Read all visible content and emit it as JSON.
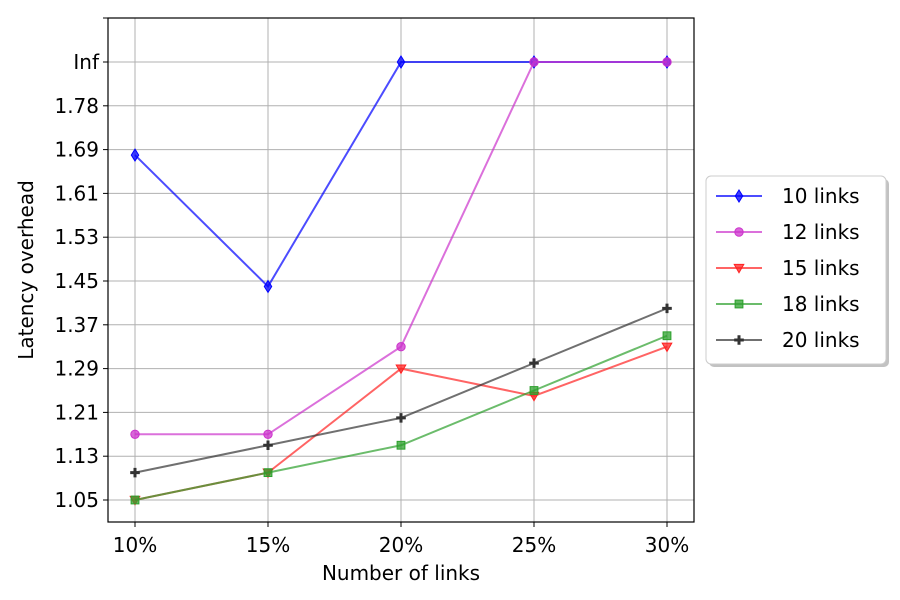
{
  "chart_data": {
    "type": "line",
    "xlabel": "Number of links",
    "ylabel": "Latency overhead",
    "categories": [
      "10%",
      "15%",
      "20%",
      "25%",
      "30%"
    ],
    "yticks": [
      "1.05",
      "1.13",
      "1.21",
      "1.29",
      "1.37",
      "1.45",
      "1.53",
      "1.61",
      "1.69",
      "1.78",
      "Inf"
    ],
    "ylim": [
      1.0,
      1.94
    ],
    "grid": true,
    "legend_position": "right, outside plot",
    "series": [
      {
        "name": "10 links",
        "color": "#0000ff",
        "marker": "diamond",
        "values": [
          1.68,
          1.44,
          "Inf",
          "Inf",
          "Inf"
        ]
      },
      {
        "name": "12 links",
        "color": "#cc33cc",
        "marker": "circle",
        "values": [
          1.17,
          1.17,
          1.33,
          "Inf",
          "Inf"
        ]
      },
      {
        "name": "15 links",
        "color": "#ff2222",
        "marker": "triangle-down",
        "values": [
          1.05,
          1.1,
          1.29,
          1.24,
          1.33
        ]
      },
      {
        "name": "18 links",
        "color": "#2ca02c",
        "marker": "square",
        "values": [
          1.05,
          1.1,
          1.15,
          1.25,
          1.35
        ]
      },
      {
        "name": "20 links",
        "color": "#333333",
        "marker": "plus",
        "values": [
          1.1,
          1.15,
          1.2,
          1.3,
          1.4
        ]
      }
    ]
  }
}
